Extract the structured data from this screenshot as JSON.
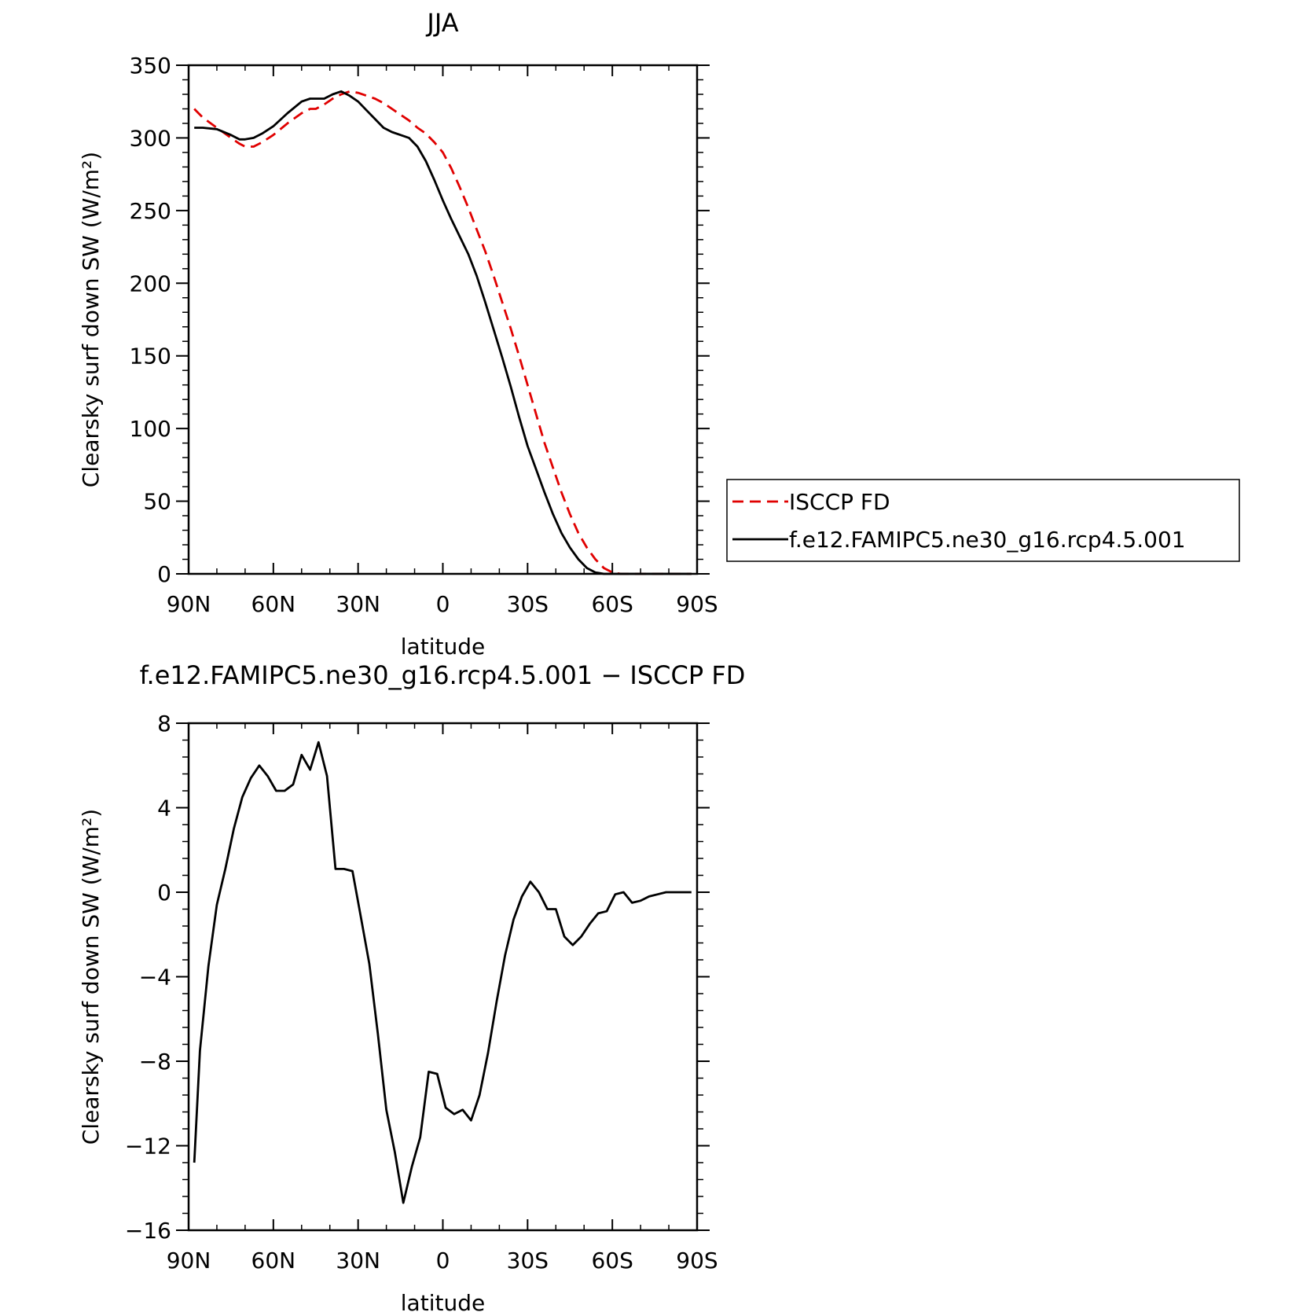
{
  "chart_data": [
    {
      "type": "line",
      "title": "JJA",
      "xlabel": "latitude",
      "ylabel": "Clearsky surf down SW (W/m²)",
      "xlim": [
        90,
        -90
      ],
      "ylim": [
        0,
        350
      ],
      "xticks": [
        {
          "value": 90,
          "label": "90N"
        },
        {
          "value": 60,
          "label": "60N"
        },
        {
          "value": 30,
          "label": "30N"
        },
        {
          "value": 0,
          "label": "0"
        },
        {
          "value": -30,
          "label": "30S"
        },
        {
          "value": -60,
          "label": "60S"
        },
        {
          "value": -90,
          "label": "90S"
        }
      ],
      "yticks": [
        0,
        50,
        100,
        150,
        200,
        250,
        300,
        350
      ],
      "legend_position": "outside-right",
      "series": [
        {
          "name": "ISCCP FD",
          "color": "#e00000",
          "dash": "dashed",
          "x": [
            88,
            85,
            80,
            75,
            72,
            70,
            67,
            64,
            60,
            55,
            50,
            47,
            45,
            42,
            39,
            36,
            33,
            30,
            27,
            24,
            21,
            18,
            15,
            12,
            9,
            6,
            3,
            0,
            -3,
            -6,
            -9,
            -12,
            -15,
            -18,
            -21,
            -24,
            -27,
            -30,
            -33,
            -36,
            -39,
            -42,
            -45,
            -48,
            -51,
            -54,
            -57,
            -60,
            -63,
            -66,
            -69,
            -72,
            -75,
            -78,
            -81,
            -84,
            -88
          ],
          "y": [
            320,
            314,
            307,
            300,
            296,
            294,
            294,
            297,
            302,
            310,
            317,
            320,
            320,
            323,
            327,
            330,
            332,
            331,
            329,
            327,
            324,
            320,
            316,
            312,
            307,
            303,
            297,
            290,
            279,
            266,
            252,
            237,
            222,
            205,
            187,
            169,
            150,
            130,
            110,
            90,
            73,
            56,
            41,
            28,
            18,
            10,
            4,
            1,
            0,
            0,
            0,
            0,
            0,
            0,
            0,
            0,
            0
          ]
        },
        {
          "name": "f.e12.FAMIPC5.ne30_g16.rcp4.5.001",
          "color": "#000000",
          "dash": "solid",
          "x": [
            88,
            85,
            80,
            75,
            72,
            70,
            67,
            64,
            60,
            55,
            50,
            47,
            45,
            42,
            39,
            36,
            33,
            30,
            27,
            24,
            21,
            18,
            15,
            12,
            9,
            6,
            3,
            0,
            -3,
            -6,
            -9,
            -12,
            -15,
            -18,
            -21,
            -24,
            -27,
            -30,
            -33,
            -36,
            -39,
            -42,
            -45,
            -48,
            -51,
            -54,
            -57,
            -60,
            -63,
            -66,
            -69,
            -72,
            -75,
            -78,
            -81,
            -84,
            -88
          ],
          "y": [
            307,
            307,
            306,
            302,
            299,
            299,
            300,
            303,
            308,
            317,
            325,
            327,
            327,
            327,
            330,
            332,
            329,
            325,
            319,
            313,
            307,
            304,
            302,
            300,
            294,
            284,
            271,
            257,
            244,
            232,
            220,
            205,
            187,
            168,
            149,
            129,
            108,
            88,
            72,
            56,
            41,
            28,
            18,
            10,
            4,
            1,
            0,
            0,
            0,
            0,
            0,
            0,
            0,
            0,
            0,
            0,
            0
          ]
        }
      ]
    },
    {
      "type": "line",
      "title": "f.e12.FAMIPC5.ne30_g16.rcp4.5.001 − ISCCP FD",
      "xlabel": "latitude",
      "ylabel": "Clearsky surf down SW (W/m²)",
      "xlim": [
        90,
        -90
      ],
      "ylim": [
        -16,
        8
      ],
      "xticks": [
        {
          "value": 90,
          "label": "90N"
        },
        {
          "value": 60,
          "label": "60N"
        },
        {
          "value": 30,
          "label": "30N"
        },
        {
          "value": 0,
          "label": "0"
        },
        {
          "value": -30,
          "label": "30S"
        },
        {
          "value": -60,
          "label": "60S"
        },
        {
          "value": -90,
          "label": "90S"
        }
      ],
      "yticks": [
        {
          "value": 8,
          "label": "8"
        },
        {
          "value": 4,
          "label": "4"
        },
        {
          "value": 0,
          "label": "0"
        },
        {
          "value": -4,
          "label": "−4"
        },
        {
          "value": -8,
          "label": "−8"
        },
        {
          "value": -12,
          "label": "−12"
        },
        {
          "value": -16,
          "label": "−16"
        }
      ],
      "series": [
        {
          "color": "#000000",
          "x": [
            88,
            86,
            83,
            80,
            77,
            74,
            71,
            68,
            65,
            62,
            59,
            56,
            53,
            50,
            47,
            44,
            41,
            38,
            35,
            32,
            29,
            26,
            23,
            20,
            17,
            14,
            11,
            8,
            5,
            2,
            -1,
            -4,
            -7,
            -10,
            -13,
            -16,
            -19,
            -22,
            -25,
            -28,
            -31,
            -34,
            -37,
            -40,
            -43,
            -46,
            -49,
            -52,
            -55,
            -58,
            -61,
            -64,
            -67,
            -70,
            -73,
            -76,
            -79,
            -82,
            -85,
            -88
          ],
          "y": [
            -12.8,
            -7.5,
            -3.5,
            -0.6,
            1.1,
            3.0,
            4.5,
            5.4,
            6.0,
            5.5,
            4.8,
            4.8,
            5.1,
            6.5,
            5.8,
            7.1,
            5.5,
            1.1,
            1.1,
            1.0,
            -1.2,
            -3.4,
            -6.7,
            -10.3,
            -12.3,
            -14.7,
            -13.0,
            -11.6,
            -8.5,
            -8.6,
            -10.2,
            -10.5,
            -10.3,
            -10.8,
            -9.6,
            -7.6,
            -5.2,
            -3.0,
            -1.3,
            -0.2,
            0.5,
            0.0,
            -0.8,
            -0.8,
            -2.1,
            -2.5,
            -2.1,
            -1.5,
            -1.0,
            -0.9,
            -0.1,
            0.0,
            -0.5,
            -0.4,
            -0.2,
            -0.1,
            0.0,
            0.0,
            0.0,
            0.0
          ]
        }
      ]
    }
  ]
}
